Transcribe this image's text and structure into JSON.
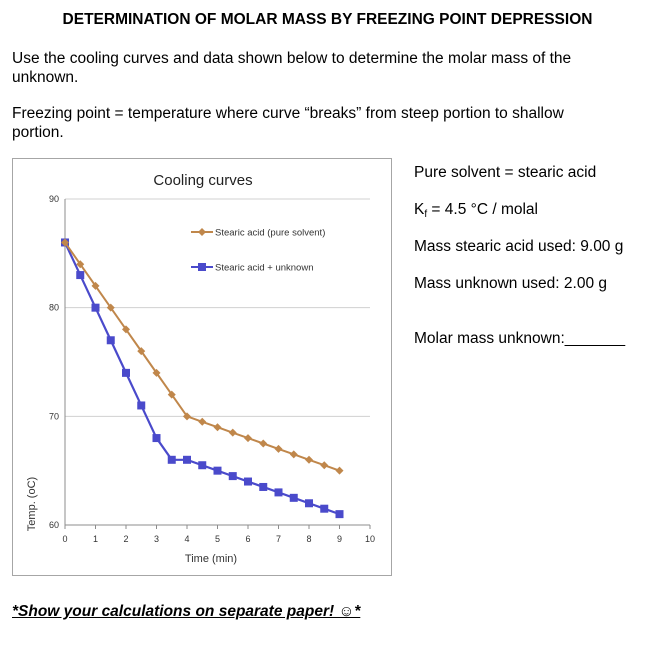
{
  "page": {
    "title": "DETERMINATION OF MOLAR MASS BY FREEZING POINT DEPRESSION",
    "instruction": "Use the cooling curves and data shown below to determine the molar mass of the unknown.",
    "definition": "Freezing point = temperature where curve “breaks” from steep portion to shallow portion.",
    "footer": "*Show your calculations on separate paper! ☺*"
  },
  "sidebar": {
    "pure_solvent": "Pure solvent = stearic acid",
    "kf_prefix": "K",
    "kf_sub": "f",
    "kf_rest": " = 4.5 °C / molal",
    "mass_solvent": "Mass stearic acid used: 9.00 g",
    "mass_unknown": "Mass unknown used: 2.00 g",
    "molar_mass_prompt": "Molar mass unknown:_______"
  },
  "colors": {
    "pure_series": "#C0874B",
    "mixture_series": "#4A4ACB",
    "gridline": "#d0d0d0",
    "axis": "#8c8c8c"
  },
  "chart_data": {
    "type": "line",
    "title": "Cooling curves",
    "xlabel": "Time (min)",
    "ylabel": "Temp. (oC)",
    "xlim": [
      0,
      10
    ],
    "ylim": [
      60,
      90
    ],
    "xticks": [
      0,
      1,
      2,
      3,
      4,
      5,
      6,
      7,
      8,
      9,
      10
    ],
    "yticks": [
      60,
      70,
      80,
      90
    ],
    "grid": true,
    "legend_position": "top-right",
    "series": [
      {
        "name": "Stearic acid (pure solvent)",
        "marker": "diamond",
        "x": [
          0,
          0.5,
          1,
          1.5,
          2,
          2.5,
          3,
          3.5,
          4,
          4.5,
          5,
          5.5,
          6,
          6.5,
          7,
          7.5,
          8,
          8.5,
          9
        ],
        "y": [
          86,
          84,
          82,
          80,
          78,
          76,
          74,
          72,
          70,
          69.5,
          69,
          68.5,
          68,
          67.5,
          67,
          66.5,
          66,
          65.5,
          65
        ]
      },
      {
        "name": "Stearic acid + unknown",
        "marker": "square",
        "x": [
          0,
          0.5,
          1,
          1.5,
          2,
          2.5,
          3,
          3.5,
          4,
          4.5,
          5,
          5.5,
          6,
          6.5,
          7,
          7.5,
          8,
          8.5,
          9
        ],
        "y": [
          86,
          83,
          80,
          77,
          74,
          71,
          68,
          66,
          66,
          65.5,
          65,
          64.5,
          64,
          63.5,
          63,
          62.5,
          62,
          61.5,
          61
        ]
      }
    ]
  }
}
